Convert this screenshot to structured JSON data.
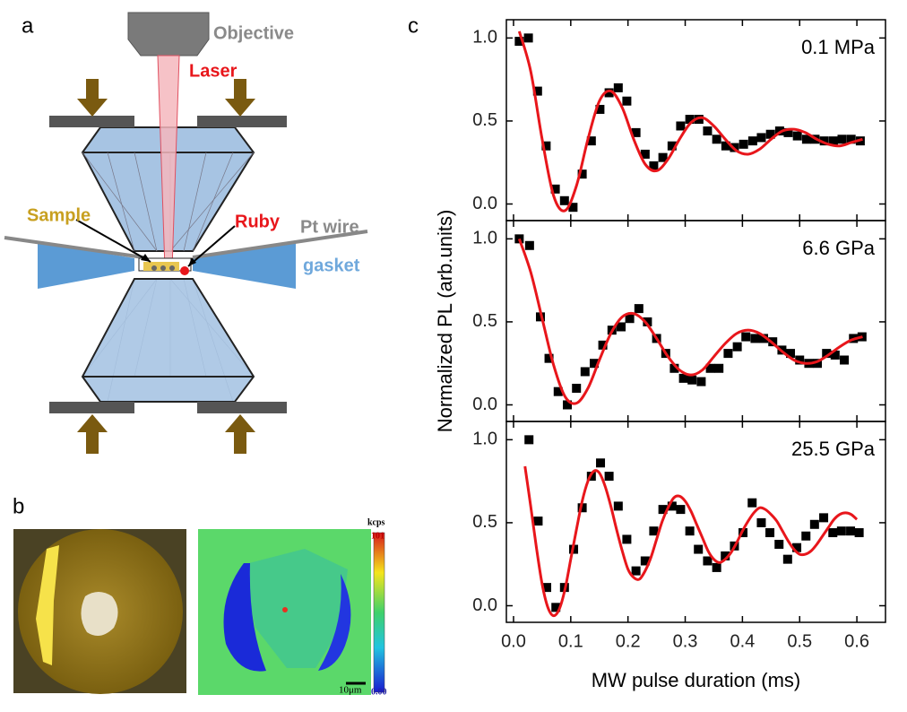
{
  "panel_labels": [
    "a",
    "b",
    "c"
  ],
  "diagram": {
    "objective": "Objective",
    "laser": "Laser",
    "sample": "Sample",
    "ruby": "Ruby",
    "pt_wire": "Pt wire",
    "gasket": "gasket"
  },
  "images": {
    "colorbar_unit": "kcps",
    "colorbar_max": "101",
    "colorbar_min": "0.00",
    "scale_bar": "10μm"
  },
  "chart_data": [
    {
      "type": "scatter",
      "annotation": "0.1 MPa",
      "xlim": [
        -0.0125,
        0.65
      ],
      "ylim": [
        -0.1,
        1.11
      ],
      "xticks": [
        0,
        0.1,
        0.2,
        0.3,
        0.4,
        0.5,
        0.6
      ],
      "yticks": [
        {
          "value": 0,
          "label": "0.0"
        },
        {
          "value": 0.5,
          "label": "0.5"
        },
        {
          "value": 1,
          "label": "1.0"
        }
      ],
      "series": [
        {
          "color": "#000000",
          "x": [
            0.01,
            0.026,
            0.042,
            0.057,
            0.073,
            0.089,
            0.104,
            0.12,
            0.136,
            0.151,
            0.167,
            0.183,
            0.198,
            0.214,
            0.23,
            0.245,
            0.261,
            0.277,
            0.292,
            0.308,
            0.324,
            0.339,
            0.355,
            0.371,
            0.386,
            0.402,
            0.418,
            0.433,
            0.449,
            0.465,
            0.48,
            0.496,
            0.512,
            0.527,
            0.543,
            0.559,
            0.574,
            0.59,
            0.606
          ],
          "values": [
            0.98,
            1.0,
            0.68,
            0.35,
            0.09,
            0.02,
            -0.02,
            0.18,
            0.38,
            0.57,
            0.67,
            0.7,
            0.62,
            0.43,
            0.3,
            0.23,
            0.28,
            0.35,
            0.47,
            0.51,
            0.51,
            0.44,
            0.39,
            0.35,
            0.34,
            0.36,
            0.38,
            0.4,
            0.42,
            0.44,
            0.43,
            0.41,
            0.39,
            0.39,
            0.38,
            0.38,
            0.39,
            0.39,
            0.38
          ]
        },
        {
          "type": "line",
          "color": "#e8161b",
          "x": [
            0.01,
            0.03,
            0.05,
            0.07,
            0.09,
            0.11,
            0.13,
            0.15,
            0.17,
            0.19,
            0.21,
            0.23,
            0.25,
            0.27,
            0.29,
            0.31,
            0.33,
            0.35,
            0.37,
            0.39,
            0.41,
            0.43,
            0.45,
            0.47,
            0.49,
            0.51,
            0.53,
            0.55,
            0.57,
            0.59,
            0.61
          ],
          "values": [
            1.04,
            0.8,
            0.39,
            0.05,
            -0.04,
            0.11,
            0.39,
            0.62,
            0.68,
            0.58,
            0.39,
            0.24,
            0.2,
            0.27,
            0.39,
            0.49,
            0.52,
            0.47,
            0.39,
            0.32,
            0.3,
            0.33,
            0.39,
            0.44,
            0.45,
            0.43,
            0.39,
            0.36,
            0.35,
            0.37,
            0.39
          ]
        }
      ]
    },
    {
      "type": "scatter",
      "annotation": "6.6 GPa",
      "ylabel": "Normalized PL (arb.units)",
      "xlim": [
        -0.0125,
        0.65
      ],
      "ylim": [
        -0.1,
        1.11
      ],
      "xticks": [
        0,
        0.1,
        0.2,
        0.3,
        0.4,
        0.5,
        0.6
      ],
      "yticks": [
        {
          "value": 0,
          "label": "0.0"
        },
        {
          "value": 0.5,
          "label": "0.5"
        },
        {
          "value": 1,
          "label": "1.0"
        }
      ],
      "series": [
        {
          "color": "#000000",
          "x": [
            0.01,
            0.028,
            0.047,
            0.062,
            0.078,
            0.094,
            0.11,
            0.125,
            0.141,
            0.156,
            0.172,
            0.188,
            0.203,
            0.219,
            0.234,
            0.25,
            0.266,
            0.281,
            0.297,
            0.312,
            0.328,
            0.344,
            0.359,
            0.375,
            0.391,
            0.406,
            0.422,
            0.437,
            0.453,
            0.469,
            0.484,
            0.5,
            0.516,
            0.531,
            0.547,
            0.562,
            0.578,
            0.594,
            0.609
          ],
          "values": [
            1.0,
            0.96,
            0.53,
            0.28,
            0.08,
            0.0,
            0.1,
            0.2,
            0.25,
            0.36,
            0.45,
            0.47,
            0.52,
            0.58,
            0.5,
            0.4,
            0.31,
            0.22,
            0.16,
            0.15,
            0.14,
            0.22,
            0.22,
            0.31,
            0.35,
            0.41,
            0.4,
            0.4,
            0.38,
            0.33,
            0.31,
            0.27,
            0.25,
            0.25,
            0.31,
            0.3,
            0.27,
            0.4,
            0.41
          ]
        },
        {
          "type": "line",
          "color": "#e8161b",
          "x": [
            0.01,
            0.03,
            0.05,
            0.07,
            0.09,
            0.11,
            0.13,
            0.15,
            0.17,
            0.19,
            0.21,
            0.23,
            0.25,
            0.27,
            0.29,
            0.31,
            0.33,
            0.35,
            0.37,
            0.39,
            0.41,
            0.43,
            0.45,
            0.47,
            0.49,
            0.51,
            0.53,
            0.55,
            0.57,
            0.59,
            0.61
          ],
          "values": [
            1.0,
            0.8,
            0.52,
            0.24,
            0.05,
            0.01,
            0.1,
            0.27,
            0.43,
            0.53,
            0.55,
            0.5,
            0.4,
            0.29,
            0.21,
            0.18,
            0.21,
            0.29,
            0.37,
            0.43,
            0.45,
            0.43,
            0.38,
            0.32,
            0.27,
            0.25,
            0.26,
            0.3,
            0.35,
            0.39,
            0.41
          ]
        }
      ]
    },
    {
      "type": "scatter",
      "annotation": "25.5 GPa",
      "xlabel": "MW pulse duration (ms)",
      "xlim": [
        -0.0125,
        0.65
      ],
      "ylim": [
        -0.1,
        1.11
      ],
      "xticks": [
        {
          "value": 0,
          "label": "0.0"
        },
        {
          "value": 0.1,
          "label": "0.1"
        },
        {
          "value": 0.2,
          "label": "0.2"
        },
        {
          "value": 0.3,
          "label": "0.3"
        },
        {
          "value": 0.4,
          "label": "0.4"
        },
        {
          "value": 0.5,
          "label": "0.5"
        },
        {
          "value": 0.6,
          "label": "0.6"
        }
      ],
      "yticks": [
        {
          "value": 0,
          "label": "0.0"
        },
        {
          "value": 0.5,
          "label": "0.5"
        },
        {
          "value": 1,
          "label": "1.0"
        }
      ],
      "series": [
        {
          "color": "#000000",
          "x": [
            0.027,
            0.043,
            0.058,
            0.074,
            0.089,
            0.105,
            0.12,
            0.136,
            0.152,
            0.167,
            0.183,
            0.198,
            0.214,
            0.23,
            0.245,
            0.261,
            0.277,
            0.292,
            0.308,
            0.323,
            0.339,
            0.355,
            0.37,
            0.386,
            0.401,
            0.417,
            0.433,
            0.448,
            0.464,
            0.479,
            0.495,
            0.511,
            0.526,
            0.542,
            0.558,
            0.573,
            0.589,
            0.604
          ],
          "values": [
            1.0,
            0.51,
            0.11,
            -0.01,
            0.11,
            0.34,
            0.59,
            0.78,
            0.86,
            0.78,
            0.6,
            0.4,
            0.21,
            0.27,
            0.45,
            0.58,
            0.6,
            0.58,
            0.45,
            0.34,
            0.27,
            0.23,
            0.3,
            0.36,
            0.44,
            0.62,
            0.5,
            0.44,
            0.37,
            0.28,
            0.35,
            0.42,
            0.49,
            0.53,
            0.44,
            0.45,
            0.45,
            0.44
          ]
        },
        {
          "type": "line",
          "color": "#e8161b",
          "x": [
            0.02,
            0.03,
            0.04,
            0.05,
            0.06,
            0.07,
            0.08,
            0.09,
            0.1,
            0.11,
            0.12,
            0.13,
            0.14,
            0.15,
            0.16,
            0.17,
            0.18,
            0.19,
            0.2,
            0.21,
            0.22,
            0.23,
            0.24,
            0.25,
            0.26,
            0.27,
            0.28,
            0.29,
            0.3,
            0.31,
            0.32,
            0.33,
            0.34,
            0.35,
            0.36,
            0.37,
            0.38,
            0.39,
            0.4,
            0.41,
            0.42,
            0.43,
            0.44,
            0.45,
            0.46,
            0.47,
            0.48,
            0.49,
            0.5,
            0.51,
            0.52,
            0.53,
            0.54,
            0.55,
            0.56,
            0.57,
            0.58,
            0.59,
            0.6
          ],
          "values": [
            0.84,
            0.6,
            0.35,
            0.13,
            -0.01,
            -0.06,
            -0.02,
            0.1,
            0.28,
            0.46,
            0.63,
            0.75,
            0.81,
            0.8,
            0.72,
            0.6,
            0.46,
            0.33,
            0.22,
            0.17,
            0.16,
            0.21,
            0.29,
            0.4,
            0.51,
            0.59,
            0.65,
            0.66,
            0.63,
            0.57,
            0.49,
            0.41,
            0.33,
            0.28,
            0.26,
            0.28,
            0.32,
            0.38,
            0.45,
            0.51,
            0.56,
            0.59,
            0.58,
            0.55,
            0.51,
            0.45,
            0.39,
            0.34,
            0.31,
            0.31,
            0.33,
            0.37,
            0.42,
            0.47,
            0.52,
            0.55,
            0.56,
            0.55,
            0.52
          ]
        }
      ]
    }
  ]
}
